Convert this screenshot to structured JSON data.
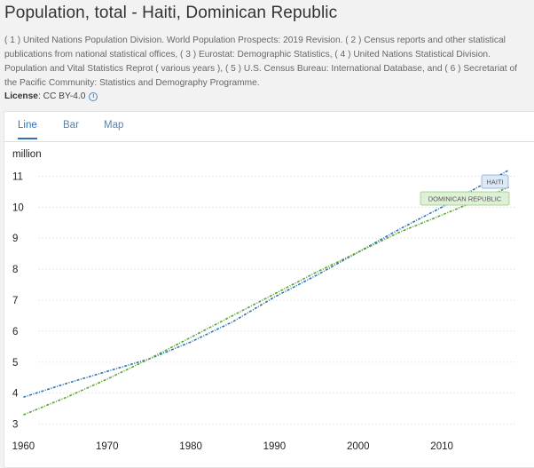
{
  "page": {
    "title": "Population, total - Haiti, Dominican Republic",
    "source": "( 1 ) United Nations Population Division. World Population Prospects: 2019 Revision. ( 2 ) Census reports and other statistical publications from national statistical offices, ( 3 ) Eurostat: Demographic Statistics, ( 4 ) United Nations Statistical Division. Population and Vital Statistics Reprot ( various years ), ( 5 ) U.S. Census Bureau: International Database, and ( 6 ) Secretariat of the Pacific Community: Statistics and Demography Programme.",
    "license_label": "License",
    "license_value": ": CC BY-4.0",
    "info_icon": "i"
  },
  "tabs": [
    {
      "label": "Line",
      "active": true
    },
    {
      "label": "Bar",
      "active": false
    },
    {
      "label": "Map",
      "active": false
    }
  ],
  "colors": {
    "haiti": "#2f73b6",
    "dominican": "#5aa531",
    "haiti_label_bg": "#dce9f7",
    "dominican_label_bg": "#dff0d8"
  },
  "chart_data": {
    "type": "line",
    "ylabel": "million",
    "xlabel": "",
    "xlim": [
      1959,
      2019
    ],
    "ylim": [
      2.7,
      11.5
    ],
    "y_ticks": [
      3,
      4,
      5,
      6,
      7,
      8,
      9,
      10,
      11
    ],
    "x_ticks": [
      1960,
      1970,
      1980,
      1990,
      2000,
      2010
    ],
    "grid": true,
    "series": [
      {
        "name": "HAITI",
        "key": "haiti",
        "x": [
          1960,
          1965,
          1970,
          1975,
          1980,
          1985,
          1990,
          1995,
          2000,
          2005,
          2010,
          2015,
          2018
        ],
        "values": [
          3.87,
          4.3,
          4.7,
          5.1,
          5.65,
          6.3,
          7.1,
          7.8,
          8.55,
          9.3,
          10.0,
          10.75,
          11.2
        ]
      },
      {
        "name": "DOMINICAN REPUBLIC",
        "key": "dominican",
        "x": [
          1960,
          1965,
          1970,
          1975,
          1980,
          1985,
          1990,
          1995,
          2000,
          2005,
          2010,
          2015,
          2018
        ],
        "values": [
          3.3,
          3.85,
          4.45,
          5.1,
          5.8,
          6.5,
          7.2,
          7.9,
          8.55,
          9.2,
          9.75,
          10.3,
          10.65
        ]
      }
    ]
  }
}
